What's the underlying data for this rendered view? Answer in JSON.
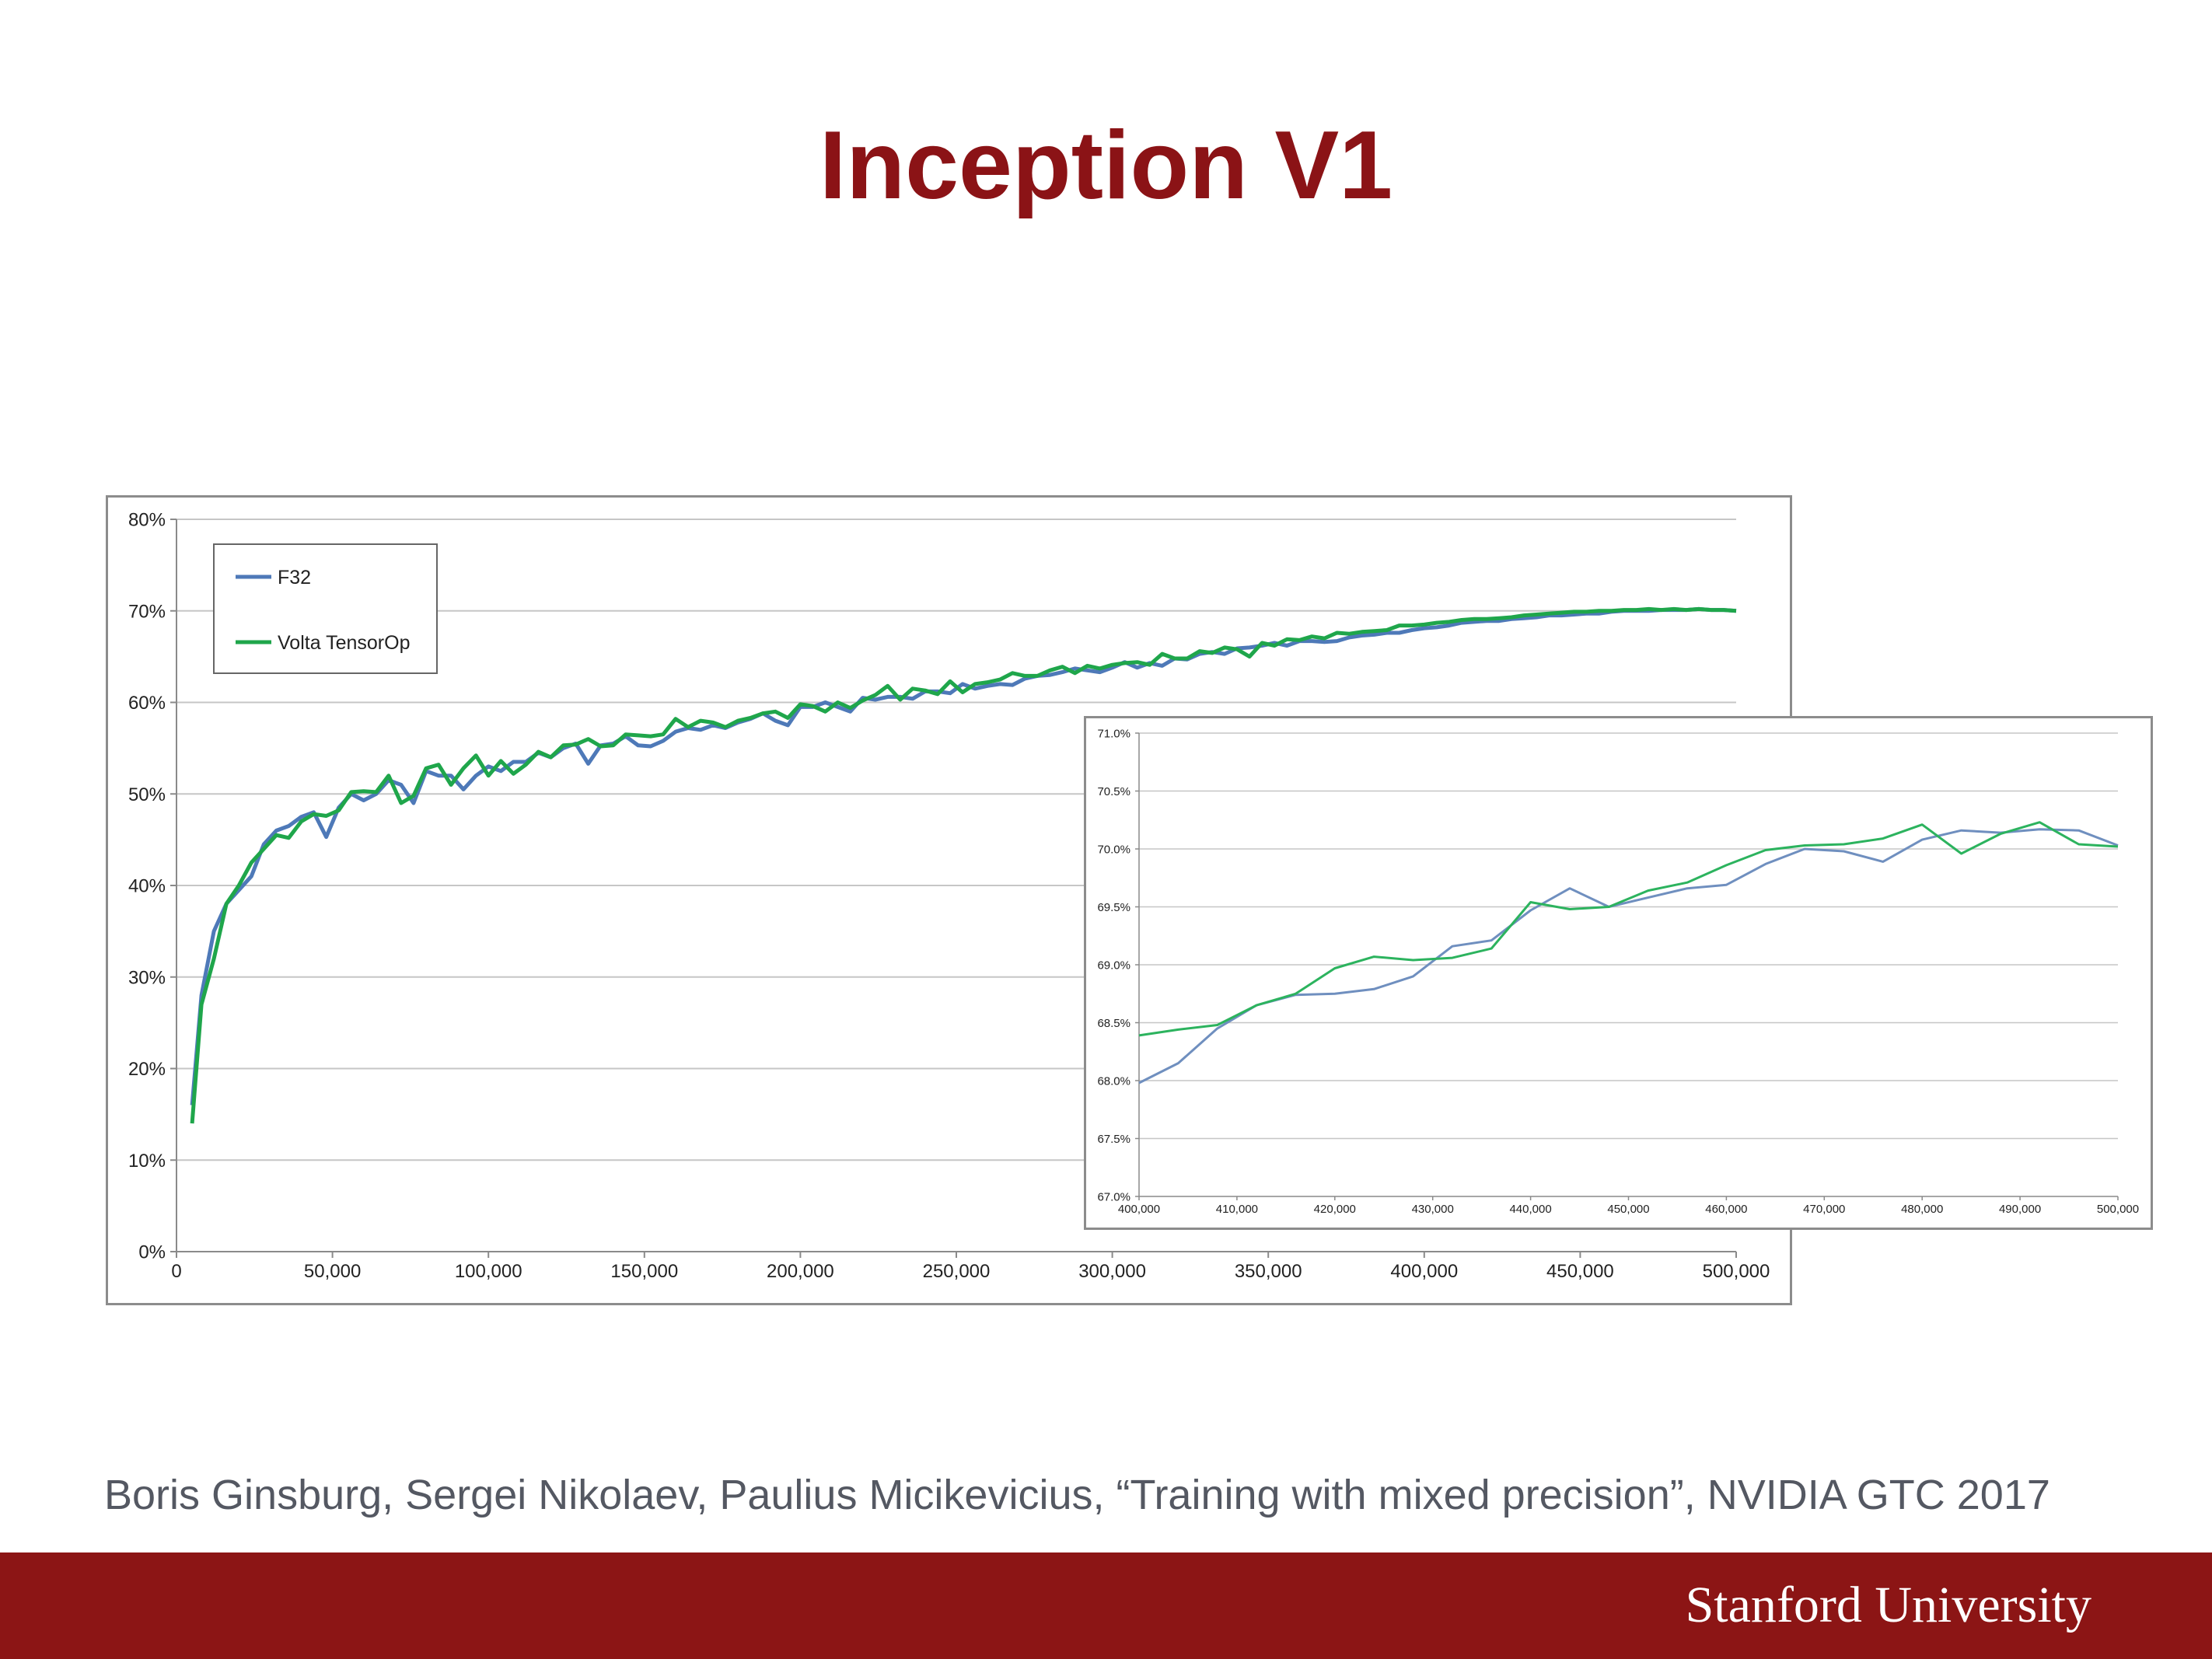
{
  "slide": {
    "title": "Inception V1"
  },
  "citation": "Boris Ginsburg, Sergei Nikolaev, Paulius Micikevicius, “Training with mixed precision”, NVIDIA GTC 2017",
  "footer": {
    "logo": "Stanford University",
    "bar_color": "#8c1515"
  },
  "chart_data": [
    {
      "type": "line",
      "title": "",
      "xlabel": "",
      "ylabel": "",
      "xlim": [
        0,
        500000
      ],
      "ylim": [
        0,
        80
      ],
      "x_ticks": [
        "0",
        "50,000",
        "100,000",
        "150,000",
        "200,000",
        "250,000",
        "300,000",
        "350,000",
        "400,000",
        "450,000",
        "500,000"
      ],
      "y_ticks": [
        "0%",
        "10%",
        "20%",
        "30%",
        "40%",
        "50%",
        "60%",
        "70%",
        "80%"
      ],
      "grid": true,
      "legend": "top-left",
      "series": [
        {
          "name": "F32",
          "color": "#4e79b8",
          "x": [
            5000,
            8000,
            12000,
            16000,
            20000,
            24000,
            28000,
            32000,
            36000,
            40000,
            44000,
            48000,
            52000,
            56000,
            60000,
            64000,
            68000,
            72000,
            76000,
            80000,
            84000,
            88000,
            92000,
            96000,
            100000,
            104000,
            108000,
            112000,
            116000,
            120000,
            124000,
            128000,
            132000,
            136000,
            140000,
            144000,
            148000,
            152000,
            156000,
            160000,
            164000,
            168000,
            172000,
            176000,
            180000,
            184000,
            188000,
            192000,
            196000,
            200000,
            204000,
            208000,
            212000,
            216000,
            220000,
            224000,
            228000,
            232000,
            236000,
            240000,
            244000,
            248000,
            252000,
            256000,
            260000,
            264000,
            268000,
            272000,
            276000,
            280000,
            284000,
            288000,
            292000,
            296000,
            300000,
            304000,
            308000,
            312000,
            316000,
            320000,
            324000,
            328000,
            332000,
            336000,
            340000,
            344000,
            348000,
            352000,
            356000,
            360000,
            364000,
            368000,
            372000,
            376000,
            380000,
            384000,
            388000,
            392000,
            396000,
            400000,
            404000,
            408000,
            412000,
            416000,
            420000,
            424000,
            428000,
            432000,
            436000,
            440000,
            444000,
            448000,
            452000,
            456000,
            460000,
            464000,
            468000,
            472000,
            476000,
            480000,
            484000,
            488000,
            492000,
            496000,
            500000
          ],
          "values": [
            16,
            28,
            35,
            38,
            39.5,
            41,
            44.5,
            46,
            46.5,
            47.5,
            48,
            45.3,
            48.5,
            50,
            49.3,
            50,
            51.5,
            51,
            49,
            52.5,
            52,
            52,
            50.5,
            52,
            53,
            52.5,
            53.5,
            53.5,
            54.5,
            54,
            55,
            55.5,
            53.3,
            55.3,
            55.5,
            56.3,
            55.3,
            55.2,
            55.8,
            56.8,
            57.2,
            57,
            57.5,
            57.2,
            57.8,
            58.2,
            58.8,
            58,
            57.5,
            59.5,
            59.5,
            60,
            59.5,
            59,
            60.5,
            60.3,
            60.6,
            60.6,
            60.4,
            61.2,
            61.2,
            61,
            62,
            61.5,
            61.8,
            62,
            61.9,
            62.6,
            62.9,
            63,
            63.3,
            63.7,
            63.5,
            63.3,
            63.8,
            64.4,
            63.8,
            64.3,
            64,
            64.8,
            64.7,
            65.3,
            65.5,
            65.3,
            65.9,
            66,
            66.2,
            66.5,
            66.2,
            66.7,
            66.7,
            66.6,
            66.7,
            67.1,
            67.3,
            67.4,
            67.6,
            67.6,
            67.9,
            68.1,
            68.2,
            68.4,
            68.7,
            68.8,
            68.9,
            68.9,
            69.1,
            69.2,
            69.3,
            69.5,
            69.5,
            69.6,
            69.7,
            69.7,
            69.9,
            70,
            70,
            70,
            70.1,
            70.1,
            70.1,
            70.2,
            70.1,
            70.1,
            70
          ]
        },
        {
          "name": "Volta TensorOp",
          "color": "#1fa64b",
          "x": [
            5000,
            8000,
            12000,
            16000,
            20000,
            24000,
            28000,
            32000,
            36000,
            40000,
            44000,
            48000,
            52000,
            56000,
            60000,
            64000,
            68000,
            72000,
            76000,
            80000,
            84000,
            88000,
            92000,
            96000,
            100000,
            104000,
            108000,
            112000,
            116000,
            120000,
            124000,
            128000,
            132000,
            136000,
            140000,
            144000,
            148000,
            152000,
            156000,
            160000,
            164000,
            168000,
            172000,
            176000,
            180000,
            184000,
            188000,
            192000,
            196000,
            200000,
            204000,
            208000,
            212000,
            216000,
            220000,
            224000,
            228000,
            232000,
            236000,
            240000,
            244000,
            248000,
            252000,
            256000,
            260000,
            264000,
            268000,
            272000,
            276000,
            280000,
            284000,
            288000,
            292000,
            296000,
            300000,
            304000,
            308000,
            312000,
            316000,
            320000,
            324000,
            328000,
            332000,
            336000,
            340000,
            344000,
            348000,
            352000,
            356000,
            360000,
            364000,
            368000,
            372000,
            376000,
            380000,
            384000,
            388000,
            392000,
            396000,
            400000,
            404000,
            408000,
            412000,
            416000,
            420000,
            424000,
            428000,
            432000,
            436000,
            440000,
            444000,
            448000,
            452000,
            456000,
            460000,
            464000,
            468000,
            472000,
            476000,
            480000,
            484000,
            488000,
            492000,
            496000,
            500000
          ],
          "values": [
            14,
            27,
            32,
            38,
            40,
            42.5,
            44,
            45.5,
            45.2,
            47,
            47.8,
            47.6,
            48.2,
            50.2,
            50.3,
            50.2,
            52,
            49,
            49.8,
            52.8,
            53.2,
            51,
            52.8,
            54.2,
            52,
            53.6,
            52.2,
            53.2,
            54.6,
            54,
            55.3,
            55.4,
            56,
            55.2,
            55.3,
            56.5,
            56.4,
            56.3,
            56.5,
            58.2,
            57.3,
            58,
            57.8,
            57.3,
            58,
            58.3,
            58.8,
            59,
            58.3,
            59.8,
            59.6,
            59,
            60,
            59.4,
            60.2,
            60.8,
            61.8,
            60.3,
            61.5,
            61.3,
            60.9,
            62.3,
            61.1,
            62,
            62.2,
            62.5,
            63.2,
            62.9,
            62.9,
            63.5,
            63.9,
            63.2,
            64,
            63.7,
            64.1,
            64.3,
            64.4,
            64.1,
            65.3,
            64.8,
            64.8,
            65.6,
            65.4,
            66,
            65.8,
            65,
            66.5,
            66.2,
            66.9,
            66.8,
            67.2,
            67,
            67.6,
            67.5,
            67.7,
            67.8,
            67.9,
            68.4,
            68.4,
            68.5,
            68.7,
            68.8,
            69,
            69.1,
            69.1,
            69.2,
            69.3,
            69.5,
            69.6,
            69.7,
            69.8,
            69.9,
            69.9,
            70,
            70,
            70.1,
            70.1,
            70.2,
            70.1,
            70.2,
            70.1,
            70.2,
            70.1,
            70.1,
            70
          ]
        }
      ]
    },
    {
      "type": "line",
      "title": "",
      "xlabel": "",
      "ylabel": "",
      "xlim": [
        400000,
        500000
      ],
      "ylim": [
        67.0,
        71.0
      ],
      "x_ticks": [
        "400,000",
        "410,000",
        "420,000",
        "430,000",
        "440,000",
        "450,000",
        "460,000",
        "470,000",
        "480,000",
        "490,000",
        "500,000"
      ],
      "y_ticks": [
        "67.0%",
        "67.5%",
        "68.0%",
        "68.5%",
        "69.0%",
        "69.5%",
        "70.0%",
        "70.5%",
        "71.0%"
      ],
      "grid": true,
      "series": [
        {
          "color": "#6f8fbf",
          "x": [
            400000,
            404000,
            408000,
            412000,
            416000,
            420000,
            424000,
            428000,
            432000,
            436000,
            440000,
            444000,
            448000,
            452000,
            456000,
            460000,
            464000,
            468000,
            472000,
            476000,
            480000,
            484000,
            488000,
            492000,
            496000,
            500000
          ],
          "values": [
            67.98,
            68.15,
            68.45,
            68.65,
            68.74,
            68.75,
            68.79,
            68.9,
            69.16,
            69.21,
            69.47,
            69.66,
            69.5,
            69.58,
            69.66,
            69.69,
            69.87,
            70.0,
            69.98,
            69.89,
            70.08,
            70.16,
            70.14,
            70.17,
            70.16,
            70.03
          ]
        },
        {
          "color": "#2cb35e",
          "x": [
            400000,
            404000,
            408000,
            412000,
            416000,
            420000,
            424000,
            428000,
            432000,
            436000,
            440000,
            444000,
            448000,
            452000,
            456000,
            460000,
            464000,
            468000,
            472000,
            476000,
            480000,
            484000,
            488000,
            492000,
            496000,
            500000
          ],
          "values": [
            68.39,
            68.44,
            68.48,
            68.65,
            68.75,
            68.97,
            69.07,
            69.04,
            69.06,
            69.14,
            69.54,
            69.48,
            69.5,
            69.64,
            69.71,
            69.86,
            69.99,
            70.03,
            70.04,
            70.09,
            70.21,
            69.96,
            70.13,
            70.23,
            70.04,
            70.02
          ]
        }
      ]
    }
  ]
}
